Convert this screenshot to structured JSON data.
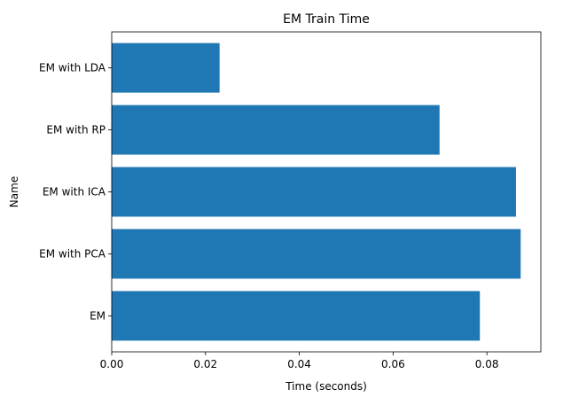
{
  "chart_data": {
    "type": "bar",
    "orientation": "horizontal",
    "title": "EM Train Time",
    "xlabel": "Time (seconds)",
    "ylabel": "Name",
    "categories": [
      "EM",
      "EM with PCA",
      "EM with ICA",
      "EM with RP",
      "EM with LDA"
    ],
    "values": [
      0.0785,
      0.0872,
      0.0862,
      0.0699,
      0.023
    ],
    "xlim": [
      0,
      0.0915
    ],
    "xticks": [
      0.0,
      0.02,
      0.04,
      0.06,
      0.08
    ],
    "xtick_labels": [
      "0.00",
      "0.02",
      "0.04",
      "0.06",
      "0.08"
    ],
    "grid": false,
    "bar_color": "#1f77b4"
  }
}
